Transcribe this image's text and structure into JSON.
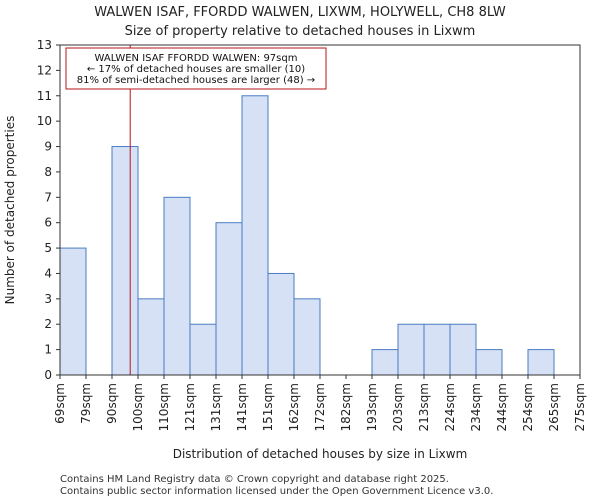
{
  "chart_data": {
    "type": "bar",
    "title_lines": [
      "WALWEN ISAF, FFORDD WALWEN, LIXWM, HOLYWELL, CH8 8LW",
      "Size of property relative to detached houses in Lixwm"
    ],
    "xlabel": "Distribution of detached houses by size in Lixwm",
    "ylabel": "Number of detached properties",
    "bin_edges": [
      69,
      79,
      90,
      100,
      110,
      121,
      131,
      141,
      151,
      162,
      172,
      182,
      193,
      203,
      213,
      224,
      234,
      244,
      254,
      265,
      275
    ],
    "tick_labels": [
      "69sqm",
      "79sqm",
      "90sqm",
      "100sqm",
      "110sqm",
      "121sqm",
      "131sqm",
      "141sqm",
      "151sqm",
      "162sqm",
      "172sqm",
      "182sqm",
      "193sqm",
      "203sqm",
      "213sqm",
      "224sqm",
      "234sqm",
      "244sqm",
      "254sqm",
      "265sqm",
      "275sqm"
    ],
    "values": [
      5,
      0,
      9,
      3,
      7,
      2,
      6,
      11,
      4,
      3,
      0,
      0,
      1,
      2,
      2,
      2,
      1,
      0,
      1,
      0
    ],
    "ylim": [
      0,
      13
    ],
    "yticks": [
      0,
      1,
      2,
      3,
      4,
      5,
      6,
      7,
      8,
      9,
      10,
      11,
      12,
      13
    ],
    "property_marker": 97,
    "bar_color": "#d6e1f5",
    "bar_edge_color": "#4a7cc4",
    "marker_color": "#b5141b",
    "annotation_lines": [
      "WALWEN ISAF FFORDD WALWEN: 97sqm",
      "← 17% of detached houses are smaller (10)",
      "81% of semi-detached houses are larger (48) →"
    ],
    "grid": false
  },
  "footer_lines": [
    "Contains HM Land Registry data © Crown copyright and database right 2025.",
    "Contains public sector information licensed under the Open Government Licence v3.0."
  ]
}
